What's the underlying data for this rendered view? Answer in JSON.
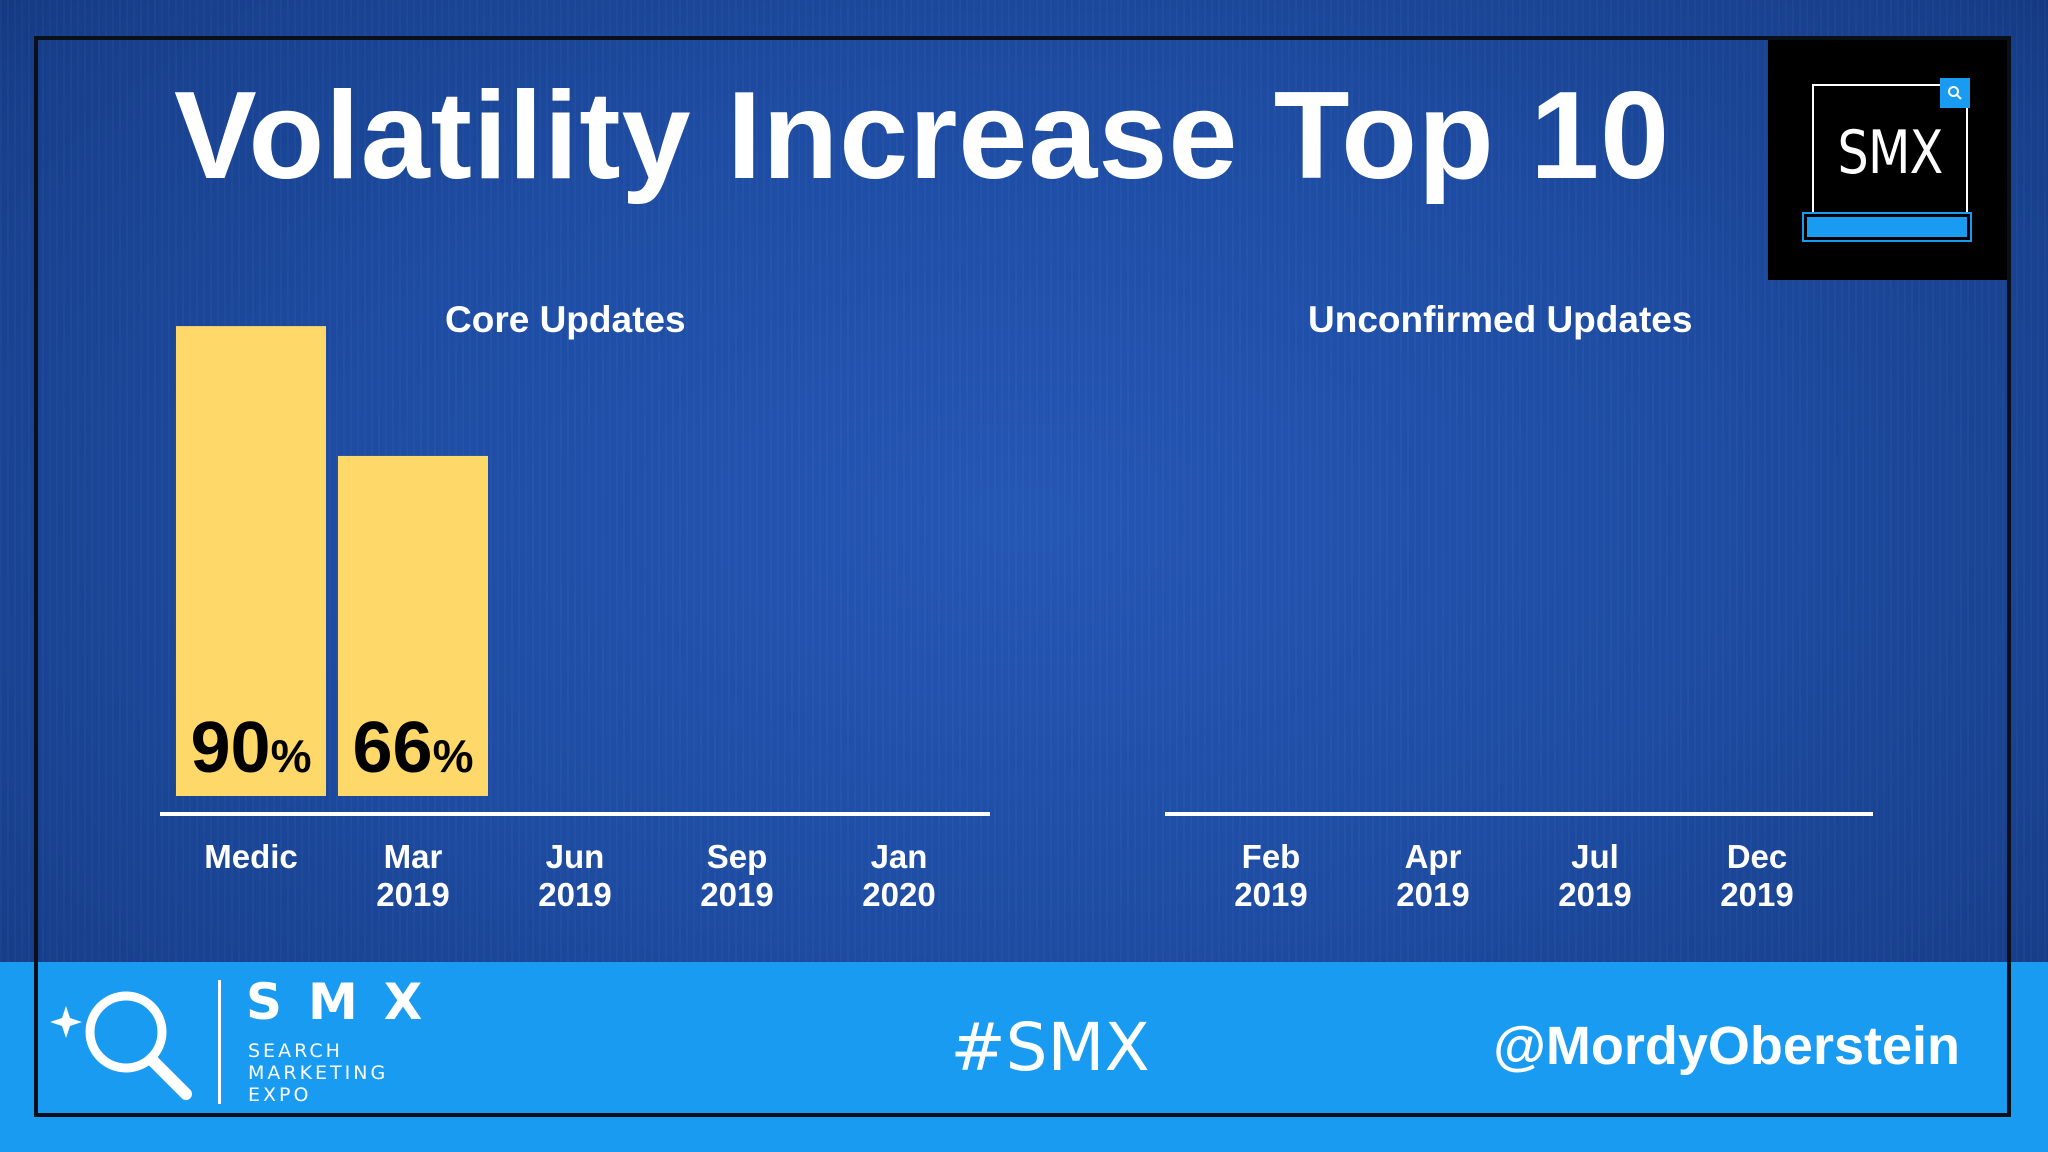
{
  "slide": {
    "title": "Volatility Increase Top 10",
    "badge_text": "SMX"
  },
  "chart_data": [
    {
      "type": "bar",
      "title": "Core Updates",
      "categories": [
        "Medic",
        "Mar\n2019",
        "Jun\n2019",
        "Sep\n2019",
        "Jan\n2020"
      ],
      "values": [
        90,
        66,
        null,
        null,
        null
      ],
      "value_labels": [
        "90%",
        "66%",
        "",
        "",
        ""
      ],
      "ylim": [
        0,
        100
      ],
      "bar_color": "#ffd86a",
      "grid": false
    },
    {
      "type": "bar",
      "title": "Unconfirmed Updates",
      "categories": [
        "Feb\n2019",
        "Apr\n2019",
        "Jul\n2019",
        "Dec\n2019"
      ],
      "values": [
        null,
        null,
        null,
        null
      ],
      "ylim": [
        0,
        100
      ],
      "bar_color": "#ffd86a",
      "grid": false
    }
  ],
  "footer": {
    "logo_name": "SMX",
    "logo_tagline": "SEARCH\nMARKETING\nEXPO",
    "hashtag": "#SMX",
    "handle": "@MordyOberstein",
    "logo_icon": "magnifier-sparkle-icon"
  },
  "colors": {
    "background": "#1f4ea6",
    "footer": "#1a9bf2",
    "bar": "#ffd86a",
    "text": "#ffffff"
  }
}
